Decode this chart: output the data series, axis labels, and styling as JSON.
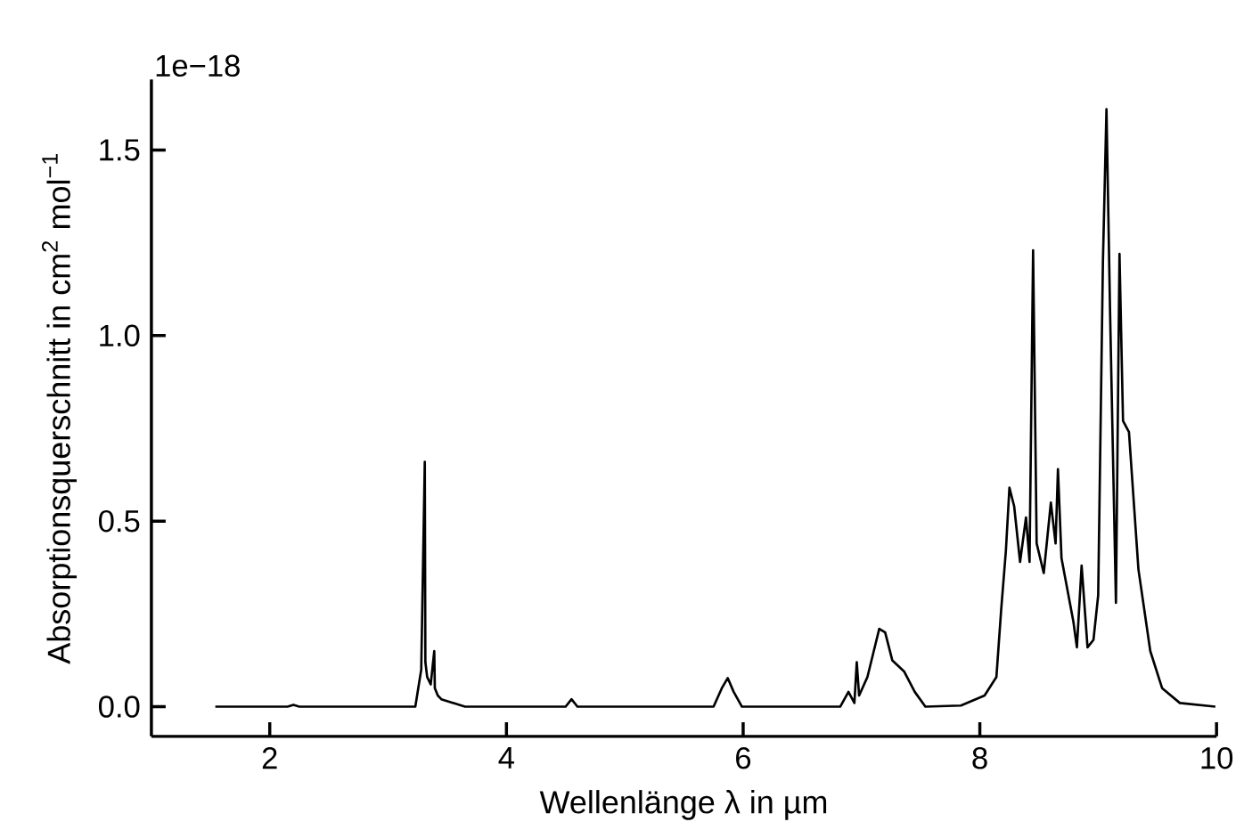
{
  "chart_data": {
    "type": "line",
    "xlabel": "Wellenlänge λ in µm",
    "ylabel": "Absorptionsquerschnitt in cm$^{2}$ mol$^{−1}$",
    "annotations": [
      "1e−18"
    ],
    "xlim": [
      1.0,
      10
    ],
    "ylim": [
      -0.08,
      1.69
    ],
    "xticks": [
      2,
      4,
      6,
      8,
      10
    ],
    "yticks": [
      {
        "value": 0,
        "label": "0.0"
      },
      {
        "value": 0.5,
        "label": "0.5"
      },
      {
        "value": 1,
        "label": "1.0"
      },
      {
        "value": 1.5,
        "label": "1.5"
      }
    ],
    "series": [
      {
        "color": "#000000",
        "x": [
          1.54,
          2.15,
          2.2,
          2.25,
          3.0,
          3.23,
          3.28,
          3.31,
          3.315,
          3.33,
          3.36,
          3.39,
          3.395,
          3.42,
          3.45,
          3.55,
          3.65,
          4.5,
          4.55,
          4.6,
          5.75,
          5.82,
          5.87,
          5.92,
          5.99,
          6.82,
          6.89,
          6.94,
          6.96,
          6.98,
          7.05,
          7.15,
          7.2,
          7.26,
          7.36,
          7.45,
          7.54,
          7.84,
          8.04,
          8.14,
          8.18,
          8.22,
          8.25,
          8.29,
          8.34,
          8.39,
          8.42,
          8.45,
          8.48,
          8.54,
          8.6,
          8.64,
          8.66,
          8.69,
          8.79,
          8.82,
          8.86,
          8.91,
          8.96,
          9.0,
          9.04,
          9.07,
          9.1,
          9.15,
          9.18,
          9.21,
          9.26,
          9.34,
          9.44,
          9.54,
          9.69,
          9.99
        ],
        "values": [
          0,
          0,
          0.005,
          0,
          0,
          0,
          0.1,
          0.66,
          0.12,
          0.08,
          0.06,
          0.15,
          0.05,
          0.03,
          0.02,
          0.01,
          0,
          0,
          0.02,
          0,
          0,
          0.05,
          0.077,
          0.04,
          0,
          0,
          0.04,
          0.01,
          0.12,
          0.03,
          0.08,
          0.21,
          0.2,
          0.125,
          0.095,
          0.04,
          0,
          0.003,
          0.03,
          0.08,
          0.26,
          0.42,
          0.59,
          0.54,
          0.39,
          0.51,
          0.39,
          1.23,
          0.44,
          0.36,
          0.55,
          0.44,
          0.64,
          0.4,
          0.23,
          0.16,
          0.38,
          0.16,
          0.18,
          0.3,
          1.2,
          1.61,
          1.07,
          0.28,
          1.22,
          0.77,
          0.74,
          0.37,
          0.15,
          0.05,
          0.01,
          0
        ]
      }
    ]
  }
}
